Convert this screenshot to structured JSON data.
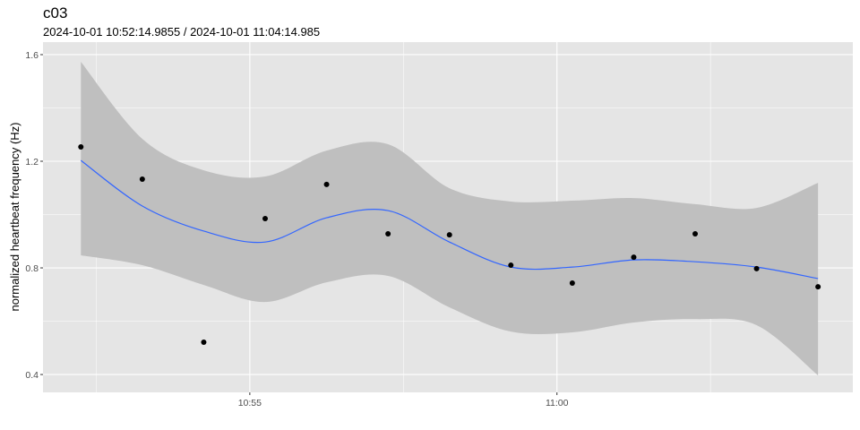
{
  "chart_data": {
    "type": "scatter",
    "title": "c03",
    "subtitle": "2024-10-01 10:52:14.9855  /  2024-10-01 11:04:14.985",
    "xlabel": "",
    "ylabel": "normalized heartbeat frequency (Hz)",
    "xlim": [
      "10:51:38",
      "11:04:49"
    ],
    "ylim": [
      0.333,
      1.647
    ],
    "x_ticks": [
      {
        "label": "10:55",
        "value": "10:55:00"
      },
      {
        "label": "11:00",
        "value": "11:00:00"
      }
    ],
    "y_ticks": [
      0.4,
      0.8,
      1.2,
      1.6
    ],
    "y_tick_labels": [
      "0.4",
      "0.8",
      "1.2",
      "1.6"
    ],
    "grid": true,
    "points": {
      "x": [
        "10:52:15",
        "10:53:15",
        "10:54:15",
        "10:55:15",
        "10:56:15",
        "10:57:15",
        "10:58:15",
        "10:59:15",
        "11:00:15",
        "11:01:15",
        "11:02:15",
        "11:03:15",
        "11:04:15"
      ],
      "y": [
        1.254,
        1.133,
        0.521,
        0.985,
        1.113,
        0.928,
        0.924,
        0.81,
        0.743,
        0.84,
        0.928,
        0.797,
        0.729
      ]
    },
    "smooth": {
      "fit": [
        1.203,
        1.032,
        0.938,
        0.897,
        0.988,
        1.015,
        0.897,
        0.803,
        0.803,
        0.83,
        0.823,
        0.803,
        0.76
      ],
      "upper": [
        1.573,
        1.284,
        1.166,
        1.143,
        1.24,
        1.264,
        1.099,
        1.049,
        1.052,
        1.062,
        1.039,
        1.025,
        1.119
      ],
      "lower": [
        0.847,
        0.81,
        0.736,
        0.672,
        0.746,
        0.77,
        0.652,
        0.561,
        0.558,
        0.595,
        0.608,
        0.585,
        0.397
      ]
    },
    "colors": {
      "panel": "#e5e5e5",
      "grid": "#ffffff",
      "line": "#3366ff",
      "ribbon": "#bfbfbf",
      "point": "#000000"
    }
  }
}
